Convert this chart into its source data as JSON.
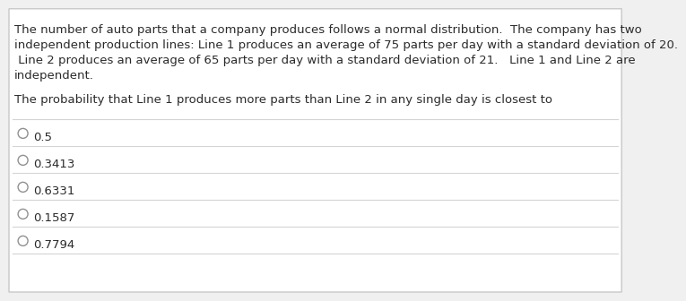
{
  "line1": "The number of auto parts that a company produces follows a normal distribution.  The company has two",
  "line2": "independent production lines: Line 1 produces an average of 75 parts per day with a standard deviation of 20.",
  "line3": " Line 2 produces an average of 65 parts per day with a standard deviation of 21.   Line 1 and Line 2 are",
  "line4": "independent.",
  "question_text": "The probability that Line 1 produces more parts than Line 2 in any single day is closest to",
  "options": [
    "0.5",
    "0.3413",
    "0.6331",
    "0.1587",
    "0.7794"
  ],
  "bg_color": "#f0f0f0",
  "card_color": "#ffffff",
  "border_color": "#c8c8c8",
  "text_color": "#2a2a2a",
  "option_line_color": "#d4d4d4",
  "circle_color": "#909090",
  "font_size_text": 9.5,
  "font_size_options": 9.5
}
